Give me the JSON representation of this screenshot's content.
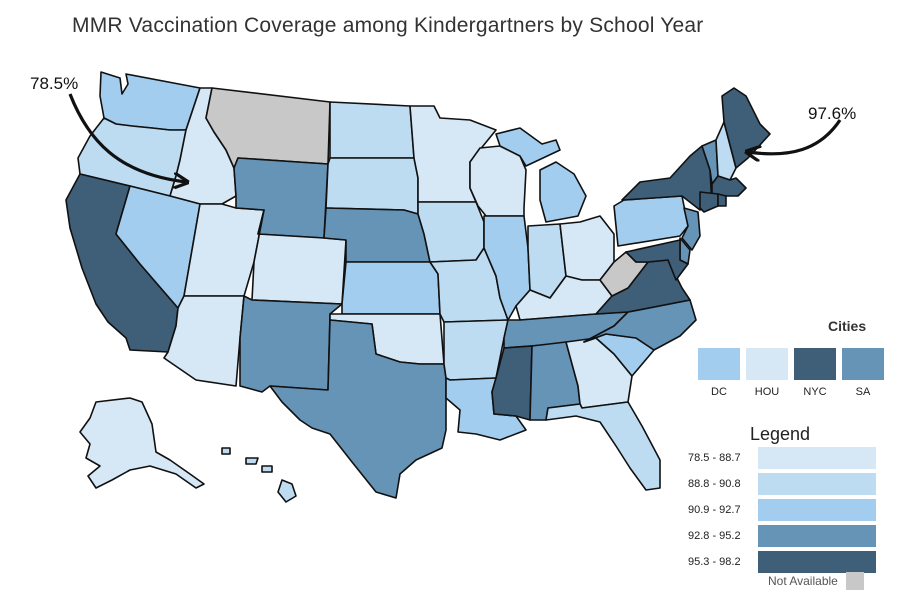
{
  "title": "MMR Vaccination Coverage among Kindergartners by School Year",
  "annotations": {
    "left": "78.5%",
    "right": "97.6%"
  },
  "colors": {
    "c1": "#d6e8f6",
    "c2": "#bddcf2",
    "c3": "#a2cdee",
    "c4": "#6594b7",
    "c5": "#3f5e78",
    "na": "#c8c8c8"
  },
  "cities": {
    "title": "Cities",
    "items": [
      {
        "label": "DC",
        "color": "#a2cdee"
      },
      {
        "label": "HOU",
        "color": "#d6e8f6"
      },
      {
        "label": "NYC",
        "color": "#3f5e78"
      },
      {
        "label": "SA",
        "color": "#6594b7"
      }
    ]
  },
  "legend": {
    "title": "Legend",
    "items": [
      {
        "label": "78.5 - 88.7",
        "color": "#d6e8f6"
      },
      {
        "label": "88.8 - 90.8",
        "color": "#bddcf2"
      },
      {
        "label": "90.9 - 92.7",
        "color": "#a2cdee"
      },
      {
        "label": "92.8 - 95.2",
        "color": "#6594b7"
      },
      {
        "label": "95.3 - 98.2",
        "color": "#3f5e78"
      }
    ],
    "not_available": "Not Available"
  },
  "states": {
    "WA": "c3",
    "OR": "c2",
    "CA": "c5",
    "ID": "c1",
    "NV": "c3",
    "UT": "c1",
    "AZ": "c1",
    "MT": "na",
    "WY": "c4",
    "CO": "c1",
    "NM": "c4",
    "ND": "c2",
    "SD": "c2",
    "NE": "c4",
    "KS": "c3",
    "OK": "c1",
    "TX": "c4",
    "MN": "c1",
    "IA": "c2",
    "MO": "c2",
    "AR": "c2",
    "LA": "c3",
    "WI": "c1",
    "IL": "c3",
    "MI": "c3",
    "IN": "c2",
    "OH": "c1",
    "KY": "c1",
    "TN": "c4",
    "MS": "c5",
    "AL": "c4",
    "GA": "c1",
    "FL": "c2",
    "SC": "c3",
    "NC": "c4",
    "VA": "c5",
    "WV": "na",
    "PA": "c3",
    "NY": "c5",
    "ME": "c5",
    "NH": "c2",
    "VT": "c4",
    "MA": "c5",
    "CT": "c5",
    "RI": "c5",
    "NJ": "c4",
    "DE": "c4",
    "MD": "c5",
    "AK": "c1",
    "HI": "c2"
  }
}
